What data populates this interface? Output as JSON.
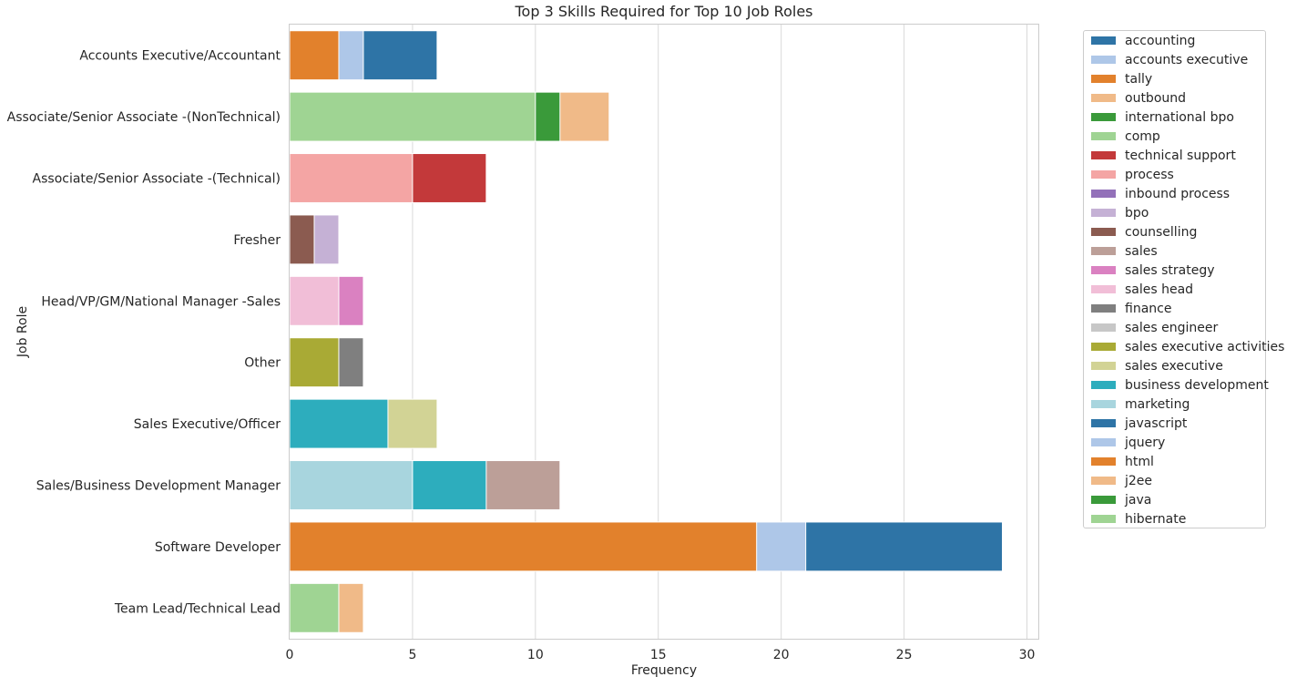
{
  "chart_data": {
    "type": "bar",
    "orientation": "horizontal",
    "stacked": true,
    "title": "Top 3 Skills Required for Top 10 Job Roles",
    "xlabel": "Frequency",
    "ylabel": "Job Role",
    "xlim": [
      0,
      30.5
    ],
    "xticks": [
      0,
      5,
      10,
      15,
      20,
      25,
      30
    ],
    "grid": "vertical",
    "legend_placement": "outside-right",
    "categories": [
      "Accounts Executive/Accountant",
      "Associate/Senior Associate -(NonTechnical)",
      "Associate/Senior Associate -(Technical)",
      "Fresher",
      "Head/VP/GM/National Manager -Sales",
      "Other",
      "Sales Executive/Officer",
      "Sales/Business Development Manager",
      "Software Developer",
      "Team Lead/Technical Lead"
    ],
    "legend": [
      {
        "name": "accounting",
        "color": "#2e74a6"
      },
      {
        "name": "accounts executive",
        "color": "#aec7e8"
      },
      {
        "name": "tally",
        "color": "#e2812c"
      },
      {
        "name": "outbound",
        "color": "#f0ba88"
      },
      {
        "name": "international bpo",
        "color": "#3a9a3a"
      },
      {
        "name": "comp",
        "color": "#9fd493"
      },
      {
        "name": "technical support",
        "color": "#c3393a"
      },
      {
        "name": "process",
        "color": "#f4a5a4"
      },
      {
        "name": "inbound process",
        "color": "#9371b9"
      },
      {
        "name": "bpo",
        "color": "#c5b1d5"
      },
      {
        "name": "counselling",
        "color": "#8b5b50"
      },
      {
        "name": "sales",
        "color": "#bc9f98"
      },
      {
        "name": "sales strategy",
        "color": "#da81c1"
      },
      {
        "name": "sales head",
        "color": "#f1bed7"
      },
      {
        "name": "finance",
        "color": "#7f7f7f"
      },
      {
        "name": "sales engineer",
        "color": "#c7c7c7"
      },
      {
        "name": "sales executive activities",
        "color": "#a9aa35"
      },
      {
        "name": "sales executive",
        "color": "#d2d395"
      },
      {
        "name": "business development",
        "color": "#2dadbd"
      },
      {
        "name": "marketing",
        "color": "#a8d5de"
      },
      {
        "name": "javascript",
        "color": "#2e74a6"
      },
      {
        "name": "jquery",
        "color": "#aec7e8"
      },
      {
        "name": "html",
        "color": "#e2812c"
      },
      {
        "name": "j2ee",
        "color": "#f0ba88"
      },
      {
        "name": "java",
        "color": "#3a9a3a"
      },
      {
        "name": "hibernate",
        "color": "#9fd493"
      }
    ],
    "bars": [
      [
        {
          "skill": "accounting",
          "value": 6,
          "color": "#2e74a6"
        },
        {
          "skill": "accounts executive",
          "value": 3,
          "color": "#aec7e8"
        },
        {
          "skill": "tally",
          "value": 2,
          "color": "#e2812c"
        }
      ],
      [
        {
          "skill": "outbound",
          "value": 13,
          "color": "#f0ba88"
        },
        {
          "skill": "international bpo",
          "value": 11,
          "color": "#3a9a3a"
        },
        {
          "skill": "comp",
          "value": 10,
          "color": "#9fd493"
        }
      ],
      [
        {
          "skill": "technical support",
          "value": 8,
          "color": "#c3393a"
        },
        {
          "skill": "process",
          "value": 5,
          "color": "#f4a5a4"
        }
      ],
      [
        {
          "skill": "bpo",
          "value": 2,
          "color": "#c5b1d5"
        },
        {
          "skill": "counselling",
          "value": 1,
          "color": "#8b5b50"
        }
      ],
      [
        {
          "skill": "sales strategy",
          "value": 3,
          "color": "#da81c1"
        },
        {
          "skill": "sales head",
          "value": 2,
          "color": "#f1bed7"
        }
      ],
      [
        {
          "skill": "finance",
          "value": 3,
          "color": "#7f7f7f"
        },
        {
          "skill": "sales executive activities",
          "value": 2,
          "color": "#a9aa35"
        }
      ],
      [
        {
          "skill": "sales executive",
          "value": 6,
          "color": "#d2d395"
        },
        {
          "skill": "business development",
          "value": 4,
          "color": "#2dadbd"
        }
      ],
      [
        {
          "skill": "sales",
          "value": 11,
          "color": "#bc9f98"
        },
        {
          "skill": "business development",
          "value": 8,
          "color": "#2dadbd"
        },
        {
          "skill": "marketing",
          "value": 5,
          "color": "#a8d5de"
        }
      ],
      [
        {
          "skill": "javascript",
          "value": 29,
          "color": "#2e74a6"
        },
        {
          "skill": "jquery",
          "value": 21,
          "color": "#aec7e8"
        },
        {
          "skill": "html",
          "value": 19,
          "color": "#e2812c"
        }
      ],
      [
        {
          "skill": "j2ee",
          "value": 3,
          "color": "#f0ba88"
        },
        {
          "skill": "hibernate",
          "value": 2,
          "color": "#9fd493"
        }
      ]
    ]
  }
}
